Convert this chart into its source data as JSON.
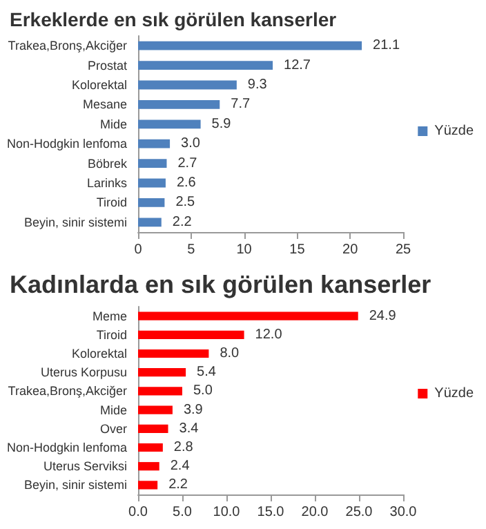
{
  "chart_data": [
    {
      "type": "bar",
      "orientation": "horizontal",
      "title": "Erkeklerde en sık görülen kanserler",
      "categories": [
        "Trakea,Bronş,Akciğer",
        "Prostat",
        "Kolorektal",
        "Mesane",
        "Mide",
        "Non-Hodgkin lenfoma",
        "Böbrek",
        "Larinks",
        "Tiroid",
        "Beyin, sinir sistemi"
      ],
      "series": [
        {
          "name": "Yüzde",
          "color": "#4f81bd",
          "values": [
            21.1,
            12.7,
            9.3,
            7.7,
            5.9,
            3.0,
            2.7,
            2.6,
            2.5,
            2.2
          ],
          "value_labels": [
            "21.1",
            "12.7",
            "9.3",
            "7.7",
            "5.9",
            "3.0",
            "2.7",
            "2.6",
            "2.5",
            "2.2"
          ]
        }
      ],
      "xlim": [
        0,
        25
      ],
      "xticks": [
        0,
        5,
        10,
        15,
        20,
        25
      ],
      "grid": false,
      "legend": "right"
    },
    {
      "type": "bar",
      "orientation": "horizontal",
      "title": "Kadınlarda en sık görülen kanserler",
      "categories": [
        "Meme",
        "Tiroid",
        "Kolorektal",
        "Uterus Korpusu",
        "Trakea,Bronş,Akciğer",
        "Mide",
        "Over",
        "Non-Hodgkin lenfoma",
        "Uterus Serviksi",
        "Beyin, sinir sistemi"
      ],
      "series": [
        {
          "name": "Yüzde",
          "color": "#ff0000",
          "values": [
            24.9,
            12.0,
            8.0,
            5.4,
            5.0,
            3.9,
            3.4,
            2.8,
            2.4,
            2.2
          ],
          "value_labels": [
            "24.9",
            "12.0",
            "8.0",
            "5.4",
            "5.0",
            "3.9",
            "3.4",
            "2.8",
            "2.4",
            "2.2"
          ]
        }
      ],
      "xlim": [
        0,
        30
      ],
      "xticks": [
        {
          "value": 0,
          "label": "0.0"
        },
        {
          "value": 5,
          "label": "5.0"
        },
        {
          "value": 10,
          "label": "10.0"
        },
        {
          "value": 15,
          "label": "15.0"
        },
        {
          "value": 20,
          "label": "20.0"
        },
        {
          "value": 25,
          "label": "25.0"
        },
        {
          "value": 30,
          "label": "30.0"
        }
      ],
      "grid": false,
      "legend": "right"
    }
  ]
}
